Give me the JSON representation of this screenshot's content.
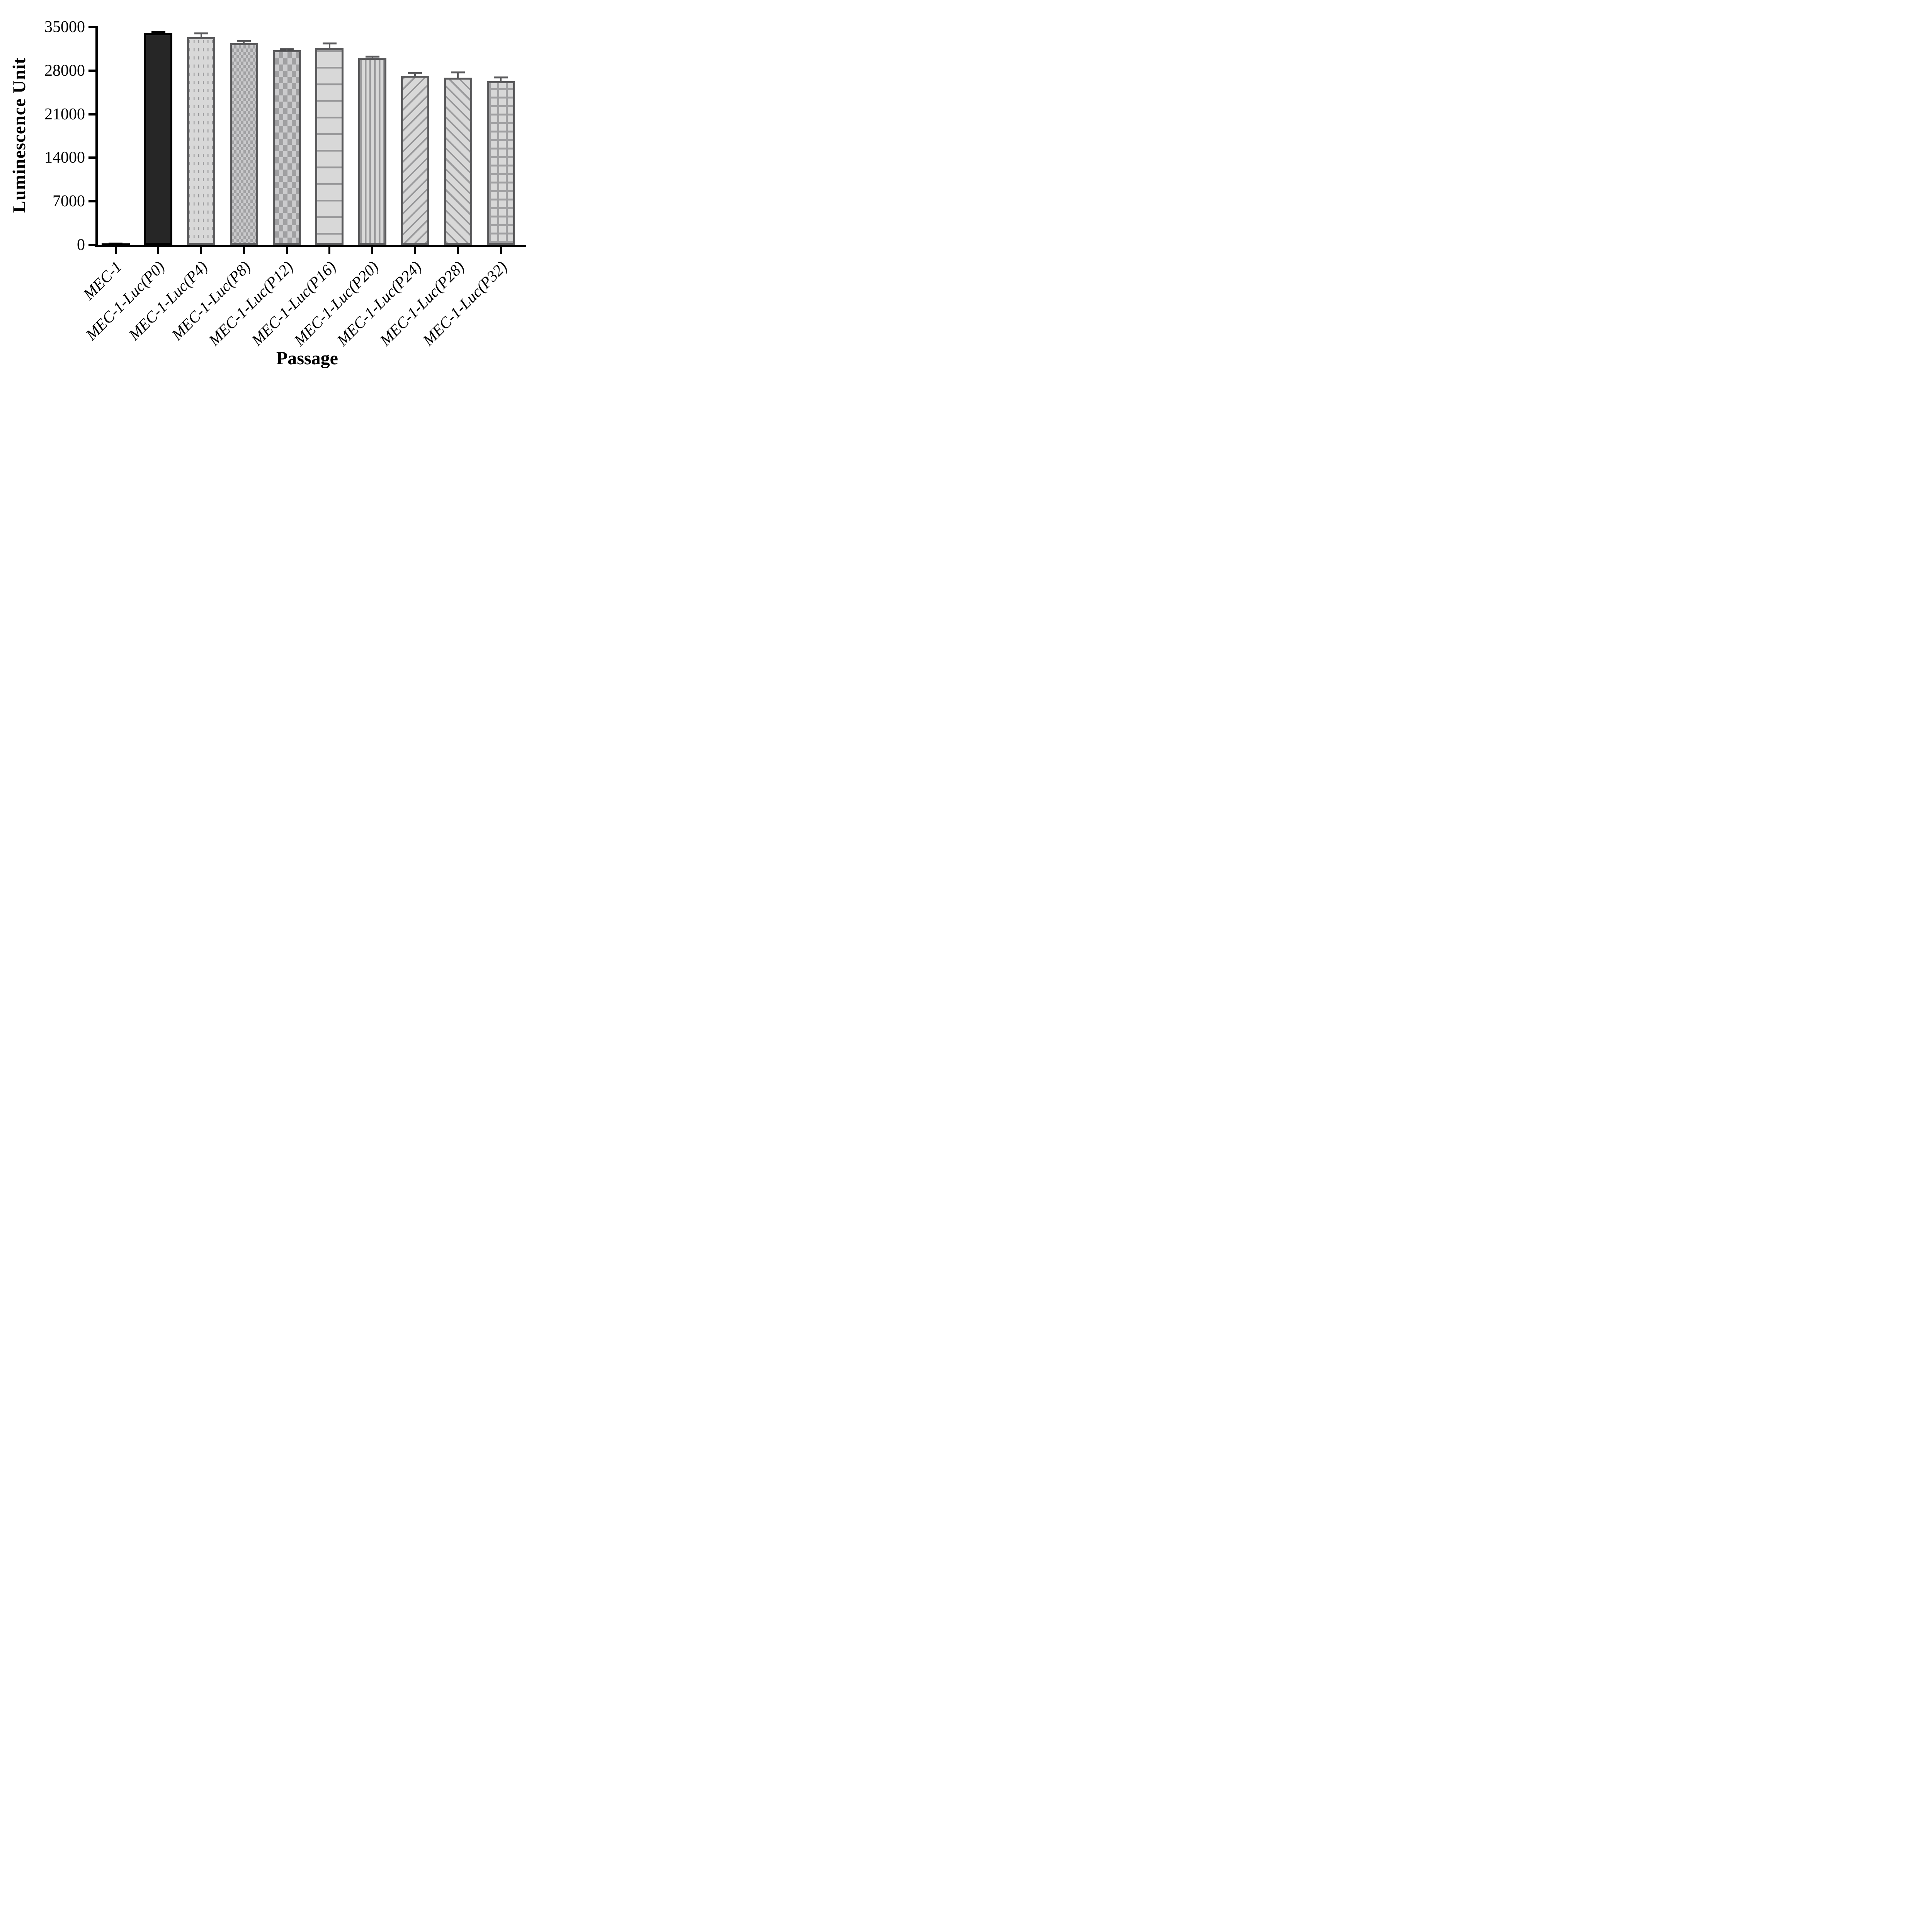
{
  "chart_data": {
    "type": "bar",
    "title": "",
    "xlabel": "Passage",
    "ylabel": "Luminescence Unit",
    "categories": [
      "MEC-1",
      "MEC-1-Luc(P0)",
      "MEC-1-Luc(P4)",
      "MEC-1-Luc(P8)",
      "MEC-1-Luc(P12)",
      "MEC-1-Luc(P16)",
      "MEC-1-Luc(P20)",
      "MEC-1-Luc(P24)",
      "MEC-1-Luc(P28)",
      "MEC-1-Luc(P32)"
    ],
    "values": [
      250,
      34000,
      33400,
      32400,
      31300,
      31600,
      30050,
      27200,
      26900,
      26300
    ],
    "errors_plus": [
      110,
      380,
      740,
      510,
      330,
      890,
      330,
      560,
      980,
      750
    ],
    "ylim": [
      0,
      35000
    ],
    "yticks": [
      0,
      7000,
      14000,
      21000,
      28000,
      35000
    ],
    "grid": false,
    "legend_position": "none",
    "bar_patterns": [
      "solid-black",
      "solid-dark",
      "dashes",
      "check-small",
      "check-large",
      "hlines",
      "vlines",
      "diag-fwd",
      "diag-back",
      "grid"
    ],
    "colors": {
      "axis": "#000000",
      "solid_bar_fill": "#262626",
      "solid_bar_border": "#000000",
      "pattern_bar_border": "#5a5a5c",
      "pattern_bar_background": "#d8d8d8",
      "pattern_foreground": "#98989a",
      "error_bar_dark": "#000000",
      "error_bar_gray": "#5a5a5c"
    }
  }
}
